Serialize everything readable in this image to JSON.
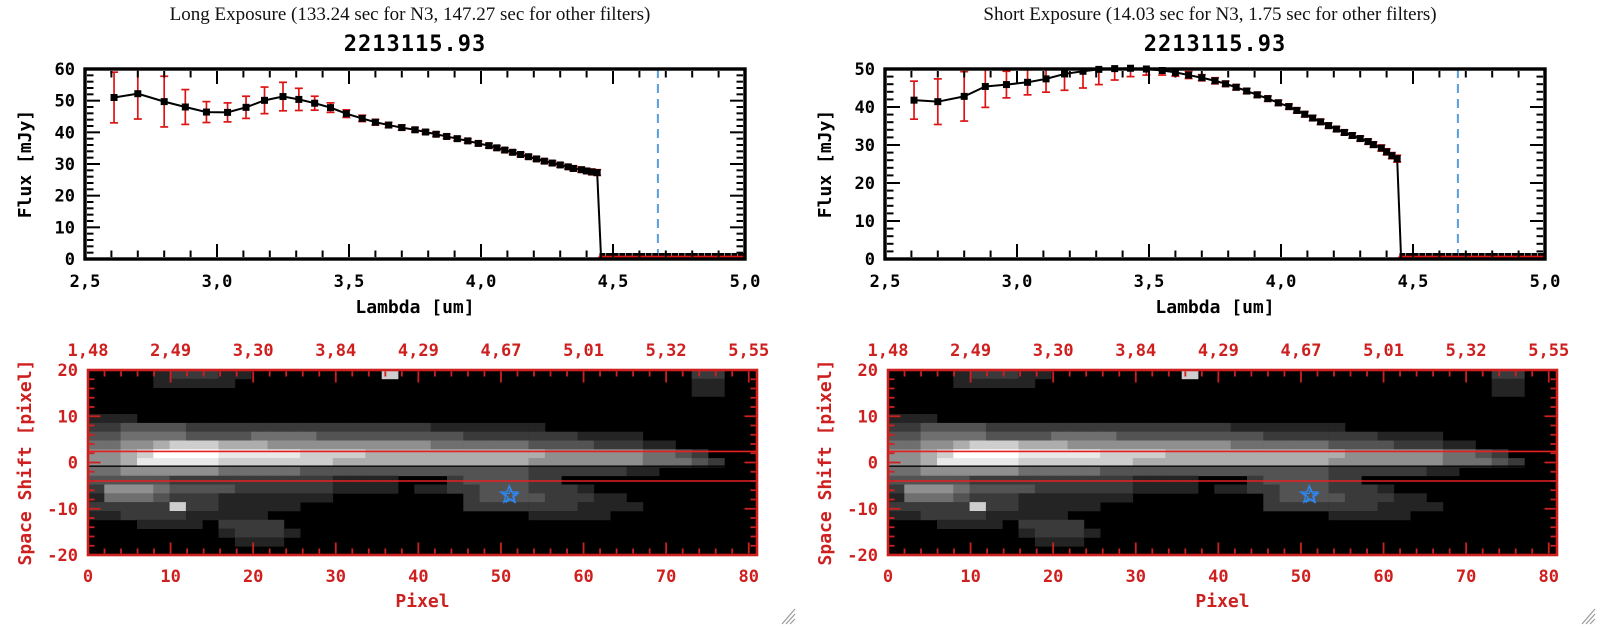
{
  "colors": {
    "axis_black": "#000000",
    "accent_red": "#cf2020",
    "aperture_red": "#e62020",
    "error_red": "#dd1414",
    "dashed_blue": "#5b9ddc",
    "star_blue": "#2e86f0",
    "grip_gray": "#9a9a9a",
    "image_background": "#000000"
  },
  "panels": [
    {
      "header": "Long Exposure (133.24 sec for N3, 147.27 sec for other filters)",
      "plot_title": "2213115.93"
    },
    {
      "header": "Short Exposure (14.03 sec for N3, 1.75 sec for other filters)",
      "plot_title": "2213115.93"
    }
  ],
  "chart_data": [
    {
      "type": "line",
      "panel": "Long Exposure",
      "title": "2213115.93",
      "xlabel": "Lambda [um]",
      "ylabel": "Flux [mJy]",
      "xlim": [
        2.5,
        5.0
      ],
      "ylim": [
        0,
        60
      ],
      "x_ticks": [
        2.5,
        3.0,
        3.5,
        4.0,
        4.5,
        5.0
      ],
      "x_tick_labels": [
        "2,5",
        "3,0",
        "3,5",
        "4,0",
        "4,5",
        "5,0"
      ],
      "y_ticks": [
        0,
        10,
        20,
        30,
        40,
        50,
        60
      ],
      "ref_line_x": 4.67,
      "cutoff_x": 4.455,
      "x": [
        2.61,
        2.7,
        2.8,
        2.88,
        2.96,
        3.04,
        3.11,
        3.18,
        3.25,
        3.31,
        3.37,
        3.43,
        3.49,
        3.55,
        3.6,
        3.65,
        3.7,
        3.75,
        3.79,
        3.83,
        3.87,
        3.91,
        3.95,
        3.99,
        4.03,
        4.06,
        4.09,
        4.12,
        4.15,
        4.18,
        4.21,
        4.24,
        4.27,
        4.3,
        4.33,
        4.35,
        4.38,
        4.4,
        4.42,
        4.44
      ],
      "flux": [
        51.0,
        52.2,
        49.7,
        48.0,
        46.4,
        46.3,
        47.9,
        50.1,
        51.3,
        50.4,
        49.2,
        47.8,
        45.9,
        44.4,
        43.2,
        42.3,
        41.5,
        40.8,
        40.1,
        39.4,
        38.7,
        38.0,
        37.3,
        36.5,
        35.8,
        35.1,
        34.4,
        33.7,
        33.0,
        32.3,
        31.6,
        30.9,
        30.3,
        29.7,
        29.1,
        28.6,
        28.2,
        27.8,
        27.5,
        27.3
      ],
      "err": [
        8.0,
        8.0,
        8.0,
        5.5,
        3.3,
        3.0,
        3.5,
        4.2,
        4.5,
        3.5,
        2.2,
        1.5,
        1.2,
        1.0,
        0.9,
        0.8,
        0.8,
        0.7,
        0.7,
        0.7,
        0.7,
        0.7,
        0.7,
        0.7,
        0.7,
        0.7,
        0.7,
        0.7,
        0.7,
        0.7,
        0.7,
        0.7,
        0.7,
        0.7,
        0.7,
        0.8,
        0.8,
        0.8,
        0.9,
        0.9
      ],
      "zero_x": [
        4.46,
        4.485,
        4.51,
        4.535,
        4.56,
        4.585,
        4.61,
        4.635,
        4.66,
        4.685,
        4.71,
        4.735,
        4.76,
        4.785,
        4.81,
        4.835,
        4.86,
        4.885,
        4.91,
        4.935,
        4.96,
        4.985
      ]
    },
    {
      "type": "line",
      "panel": "Short Exposure",
      "title": "2213115.93",
      "xlabel": "Lambda [um]",
      "ylabel": "Flux [mJy]",
      "xlim": [
        2.5,
        5.0
      ],
      "ylim": [
        0,
        50
      ],
      "x_ticks": [
        2.5,
        3.0,
        3.5,
        4.0,
        4.5,
        5.0
      ],
      "x_tick_labels": [
        "2,5",
        "3,0",
        "3,5",
        "4,0",
        "4,5",
        "5,0"
      ],
      "y_ticks": [
        0,
        10,
        20,
        30,
        40,
        50
      ],
      "ref_line_x": 4.67,
      "cutoff_x": 4.455,
      "x": [
        2.61,
        2.7,
        2.8,
        2.88,
        2.96,
        3.04,
        3.11,
        3.18,
        3.25,
        3.31,
        3.37,
        3.43,
        3.49,
        3.55,
        3.6,
        3.65,
        3.7,
        3.75,
        3.79,
        3.83,
        3.87,
        3.91,
        3.95,
        3.99,
        4.03,
        4.06,
        4.09,
        4.12,
        4.15,
        4.18,
        4.21,
        4.24,
        4.27,
        4.3,
        4.33,
        4.35,
        4.38,
        4.4,
        4.42,
        4.44
      ],
      "flux": [
        41.8,
        41.4,
        42.8,
        45.4,
        45.9,
        46.5,
        47.4,
        48.7,
        49.4,
        49.9,
        50.1,
        50.2,
        50.0,
        49.6,
        49.1,
        48.4,
        47.7,
        46.9,
        46.1,
        45.2,
        44.2,
        43.2,
        42.2,
        41.1,
        40.1,
        39.1,
        38.1,
        37.1,
        36.1,
        35.1,
        34.2,
        33.3,
        32.5,
        31.7,
        30.9,
        30.1,
        29.2,
        28.2,
        27.2,
        26.4
      ],
      "err": [
        5.0,
        6.0,
        6.5,
        5.5,
        3.5,
        3.3,
        3.5,
        4.3,
        4.4,
        4.0,
        3.0,
        2.2,
        1.6,
        1.2,
        1.0,
        0.9,
        0.8,
        0.8,
        0.7,
        0.7,
        0.7,
        0.7,
        0.7,
        0.7,
        0.7,
        0.7,
        0.7,
        0.7,
        0.7,
        0.7,
        0.7,
        0.7,
        0.7,
        0.7,
        0.7,
        0.7,
        0.8,
        0.8,
        0.8,
        0.9
      ],
      "zero_x": [
        4.46,
        4.485,
        4.51,
        4.535,
        4.56,
        4.585,
        4.61,
        4.635,
        4.66,
        4.685,
        4.71,
        4.735,
        4.76,
        4.785,
        4.81,
        4.835,
        4.86,
        4.885,
        4.91,
        4.935,
        4.96,
        4.985
      ]
    },
    {
      "type": "heatmap",
      "panel": "both (identical spatial image in each window)",
      "xlabel": "Pixel",
      "ylabel": "Space Shift [pixel]",
      "xlim": [
        0,
        81
      ],
      "ylim": [
        -20,
        20
      ],
      "x_ticks": [
        0,
        10,
        20,
        30,
        40,
        50,
        60,
        70,
        80
      ],
      "x_tick_labels": [
        "0",
        "10",
        "20",
        "30",
        "40",
        "50",
        "60",
        "70",
        "80"
      ],
      "y_ticks": [
        20,
        10,
        0,
        -10,
        -20
      ],
      "y_tick_labels": [
        "20",
        "10",
        "0",
        "-10",
        "-20"
      ],
      "top_axis_labels": [
        "1,48",
        "2,49",
        "3,30",
        "3,84",
        "4,29",
        "4,67",
        "5,01",
        "5,32",
        "5,55"
      ],
      "aperture_lines_y": [
        2.4,
        -4.0
      ],
      "center_line_y": -0.8,
      "star_marker": {
        "x": 51,
        "y": -7
      },
      "rows": [
        "00001222110000000070000000000000000002200",
        "00001111100000000000000000000000000001100",
        "00000000000000000000000000000000000001100",
        "00000000000000000000000000000000000000000",
        "00000000000000000000000000000000000000000",
        "11100000000000000000000000000000000000000",
        "22333322222222222222211111110000000000000",
        "33444433334444333333333222222211110000000",
        "44556777666555555555544444433332221100000",
        "55679999888887777666666666665555554432000",
        "55688888777777766666666666655555554443200",
        "44555555444443333333333333322222211000000",
        "33333222222222211110002333322000000000000",
        "25554333322222211110112233322210000000000",
        "14443222111111100000000233332221100000000",
        "22222722111110000000000222222211110000000",
        "11222211111000000000000000011111000000000",
        "00011110222200000000000000000000000000000",
        "00000000122210000000000000000000000000000",
        "00000000011100000000000000000000000000000",
        "00000000000000000000000000000000000000000"
      ]
    }
  ]
}
